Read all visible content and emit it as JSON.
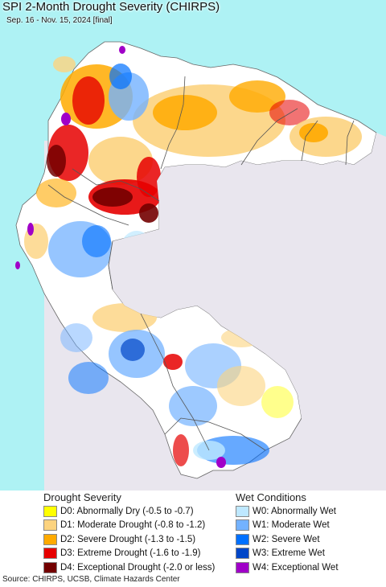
{
  "title": "SPI 2-Month Drought Severity (CHIRPS)",
  "subtitle": "Sep. 16 - Nov. 15, 2024 [final]",
  "map": {
    "colors": {
      "ocean": "#aef2f4",
      "outside_land": "#e9e6ee",
      "land_base": "#ffffff",
      "border": "#555555"
    }
  },
  "legend": {
    "drought": {
      "title": "Drought Severity",
      "items": [
        {
          "label": "D0: Abnormally Dry (-0.5 to -0.7)",
          "color": "#ffff00"
        },
        {
          "label": "D1: Moderate Drought (-0.8 to -1.2)",
          "color": "#fcd37f"
        },
        {
          "label": "D2: Severe Drought (-1.3 to -1.5)",
          "color": "#ffaa00"
        },
        {
          "label": "D3: Extreme Drought (-1.6 to -1.9)",
          "color": "#e60000"
        },
        {
          "label": "D4: Exceptional Drought (-2.0 or less)",
          "color": "#730000"
        }
      ]
    },
    "wet": {
      "title": "Wet Conditions",
      "items": [
        {
          "label": "W0: Abnormally Wet",
          "color": "#bee8ff"
        },
        {
          "label": "W1: Moderate Wet",
          "color": "#73b2ff"
        },
        {
          "label": "W2: Severe Wet",
          "color": "#0070ff"
        },
        {
          "label": "W3: Extreme Wet",
          "color": "#0046c8"
        },
        {
          "label": "W4: Exceptional Wet",
          "color": "#a000c8"
        }
      ]
    }
  },
  "source": "Source: CHIRPS, UCSB, Climate Hazards Center"
}
